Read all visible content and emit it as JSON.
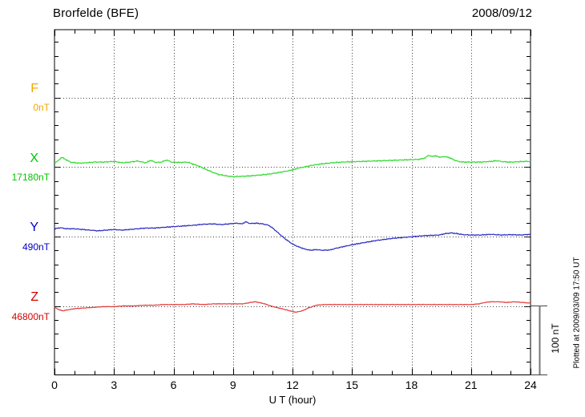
{
  "header": {
    "title": "Brorfelde (BFE)",
    "date": "2008/09/12"
  },
  "annotations": {
    "scale_bar_label": "100 nT",
    "plotted_at": "Plotted at 2009/03/09 17:50 UT"
  },
  "chart_data": {
    "type": "line",
    "title": "Brorfelde (BFE) magnetogram 2008/09/12",
    "xlabel": "U T (hour)",
    "x_range": [
      0,
      24
    ],
    "x_tick_hours": [
      0,
      3,
      6,
      9,
      12,
      15,
      18,
      21,
      24
    ],
    "x_tick_labels": [
      "0",
      "3",
      "6",
      "9",
      "12",
      "15",
      "18",
      "21",
      "24"
    ],
    "x_minor_tick_hours": 1,
    "y_minor_tick_nT": 20,
    "scale_bar_nT": 100,
    "grid": "dotted vertical lines every 3 hours; dotted horizontal baseline per component",
    "legend_position": "left margin, one colored label per component",
    "series": [
      {
        "name": "F",
        "baseline_value": "0nT",
        "label_color": "#f0a800",
        "trace_color": "#f0a800",
        "noise_nT": 0,
        "points_hour_nT": []
      },
      {
        "name": "X",
        "baseline_value": "17180nT",
        "label_color": "#00c400",
        "trace_color": "#30d930",
        "noise_nT": 0.9,
        "points_hour_nT": [
          [
            0,
            6
          ],
          [
            0.2,
            9
          ],
          [
            0.35,
            14
          ],
          [
            0.55,
            11
          ],
          [
            0.8,
            7
          ],
          [
            1.2,
            5.5
          ],
          [
            1.6,
            6
          ],
          [
            2,
            7
          ],
          [
            2.5,
            7
          ],
          [
            3,
            8
          ],
          [
            3.4,
            6
          ],
          [
            3.8,
            7
          ],
          [
            4.2,
            8.5
          ],
          [
            4.6,
            6
          ],
          [
            4.85,
            9.5
          ],
          [
            5.1,
            6.5
          ],
          [
            5.4,
            7
          ],
          [
            5.65,
            10
          ],
          [
            5.9,
            7
          ],
          [
            6.3,
            6.5
          ],
          [
            6.7,
            7
          ],
          [
            7,
            4
          ],
          [
            7.3,
            1
          ],
          [
            7.6,
            -3
          ],
          [
            8,
            -8
          ],
          [
            8.3,
            -11
          ],
          [
            8.7,
            -13
          ],
          [
            9,
            -14
          ],
          [
            9.4,
            -13.5
          ],
          [
            9.8,
            -13
          ],
          [
            10.2,
            -12
          ],
          [
            10.6,
            -11
          ],
          [
            11,
            -9.5
          ],
          [
            11.4,
            -7.5
          ],
          [
            11.8,
            -5.5
          ],
          [
            12.1,
            -3.5
          ],
          [
            12.4,
            -1
          ],
          [
            12.7,
            0.5
          ],
          [
            13,
            2.5
          ],
          [
            13.5,
            4.5
          ],
          [
            14,
            6
          ],
          [
            14.5,
            7
          ],
          [
            15,
            7.5
          ],
          [
            15.5,
            8
          ],
          [
            16,
            8.5
          ],
          [
            16.5,
            9
          ],
          [
            17,
            9.5
          ],
          [
            17.5,
            10
          ],
          [
            18,
            10.5
          ],
          [
            18.4,
            11
          ],
          [
            18.7,
            13
          ],
          [
            18.85,
            17
          ],
          [
            19,
            15
          ],
          [
            19.2,
            16
          ],
          [
            19.45,
            14
          ],
          [
            19.7,
            15
          ],
          [
            19.95,
            13
          ],
          [
            20.15,
            10
          ],
          [
            20.35,
            8
          ],
          [
            20.6,
            7
          ],
          [
            21,
            7
          ],
          [
            21.5,
            7
          ],
          [
            22,
            8
          ],
          [
            22.3,
            9
          ],
          [
            22.6,
            7.5
          ],
          [
            23,
            7
          ],
          [
            23.4,
            7.5
          ],
          [
            23.7,
            8
          ],
          [
            24,
            8
          ]
        ]
      },
      {
        "name": "Y",
        "baseline_value": "490nT",
        "label_color": "#0000c8",
        "trace_color": "#2a2ac0",
        "noise_nT": 0.8,
        "points_hour_nT": [
          [
            0,
            11
          ],
          [
            0.3,
            12.5
          ],
          [
            0.6,
            11
          ],
          [
            1,
            11
          ],
          [
            1.4,
            10
          ],
          [
            1.8,
            9
          ],
          [
            2.2,
            8
          ],
          [
            2.6,
            9
          ],
          [
            3,
            10
          ],
          [
            3.4,
            9
          ],
          [
            3.8,
            10
          ],
          [
            4.2,
            11
          ],
          [
            4.6,
            12
          ],
          [
            5,
            12
          ],
          [
            5.5,
            13
          ],
          [
            6,
            14
          ],
          [
            6.5,
            15
          ],
          [
            7,
            16
          ],
          [
            7.5,
            17.5
          ],
          [
            8,
            18
          ],
          [
            8.4,
            17
          ],
          [
            8.8,
            18
          ],
          [
            9.2,
            19
          ],
          [
            9.45,
            18
          ],
          [
            9.65,
            21
          ],
          [
            9.85,
            18.5
          ],
          [
            10.2,
            19
          ],
          [
            10.5,
            18
          ],
          [
            10.8,
            16
          ],
          [
            11,
            12
          ],
          [
            11.2,
            7
          ],
          [
            11.4,
            2
          ],
          [
            11.7,
            -5
          ],
          [
            12,
            -11
          ],
          [
            12.3,
            -15
          ],
          [
            12.6,
            -18
          ],
          [
            12.9,
            -20
          ],
          [
            13.2,
            -19
          ],
          [
            13.5,
            -20
          ],
          [
            13.9,
            -19.5
          ],
          [
            14.2,
            -17
          ],
          [
            14.6,
            -14.5
          ],
          [
            15,
            -12
          ],
          [
            15.4,
            -10
          ],
          [
            15.8,
            -8
          ],
          [
            16.2,
            -6
          ],
          [
            16.6,
            -4.5
          ],
          [
            17,
            -3
          ],
          [
            17.4,
            -2
          ],
          [
            17.8,
            -1
          ],
          [
            18.2,
            0
          ],
          [
            18.6,
            1
          ],
          [
            19,
            1.5
          ],
          [
            19.4,
            2
          ],
          [
            19.7,
            4
          ],
          [
            20,
            5
          ],
          [
            20.3,
            4
          ],
          [
            20.6,
            2.5
          ],
          [
            21,
            2
          ],
          [
            21.5,
            2
          ],
          [
            22,
            3
          ],
          [
            22.5,
            2
          ],
          [
            23,
            2.5
          ],
          [
            23.5,
            2
          ],
          [
            24,
            3
          ]
        ]
      },
      {
        "name": "Z",
        "baseline_value": "46800nT",
        "label_color": "#d80000",
        "trace_color": "#e43838",
        "noise_nT": 0.5,
        "points_hour_nT": [
          [
            0,
            -2
          ],
          [
            0.2,
            -5
          ],
          [
            0.4,
            -7
          ],
          [
            0.6,
            -6
          ],
          [
            0.8,
            -5
          ],
          [
            1,
            -4
          ],
          [
            1.5,
            -3
          ],
          [
            2,
            -2
          ],
          [
            2.5,
            -1
          ],
          [
            3,
            -1
          ],
          [
            3.5,
            0
          ],
          [
            4,
            0
          ],
          [
            4.5,
            1
          ],
          [
            5,
            1
          ],
          [
            5.5,
            2
          ],
          [
            6,
            2
          ],
          [
            6.5,
            2
          ],
          [
            7,
            3
          ],
          [
            7.5,
            2
          ],
          [
            8,
            3
          ],
          [
            8.5,
            3
          ],
          [
            9,
            3
          ],
          [
            9.5,
            3
          ],
          [
            9.9,
            5
          ],
          [
            10.1,
            6
          ],
          [
            10.3,
            5
          ],
          [
            10.6,
            3
          ],
          [
            10.9,
            0
          ],
          [
            11.3,
            -3
          ],
          [
            11.6,
            -5
          ],
          [
            12,
            -8
          ],
          [
            12.2,
            -9
          ],
          [
            12.5,
            -7
          ],
          [
            12.8,
            -3
          ],
          [
            13,
            -1
          ],
          [
            13.2,
            1
          ],
          [
            13.6,
            2
          ],
          [
            14,
            2
          ],
          [
            14.5,
            2
          ],
          [
            15,
            2
          ],
          [
            15.5,
            2
          ],
          [
            16,
            2
          ],
          [
            16.5,
            2
          ],
          [
            17,
            2
          ],
          [
            17.5,
            2
          ],
          [
            18,
            2
          ],
          [
            18.5,
            2
          ],
          [
            19,
            2
          ],
          [
            19.5,
            2
          ],
          [
            20,
            2
          ],
          [
            20.5,
            2
          ],
          [
            21,
            2
          ],
          [
            21.4,
            3
          ],
          [
            21.7,
            5
          ],
          [
            22,
            6
          ],
          [
            22.4,
            6
          ],
          [
            22.8,
            5
          ],
          [
            23.2,
            6
          ],
          [
            23.6,
            5
          ],
          [
            24,
            4
          ]
        ]
      }
    ]
  }
}
